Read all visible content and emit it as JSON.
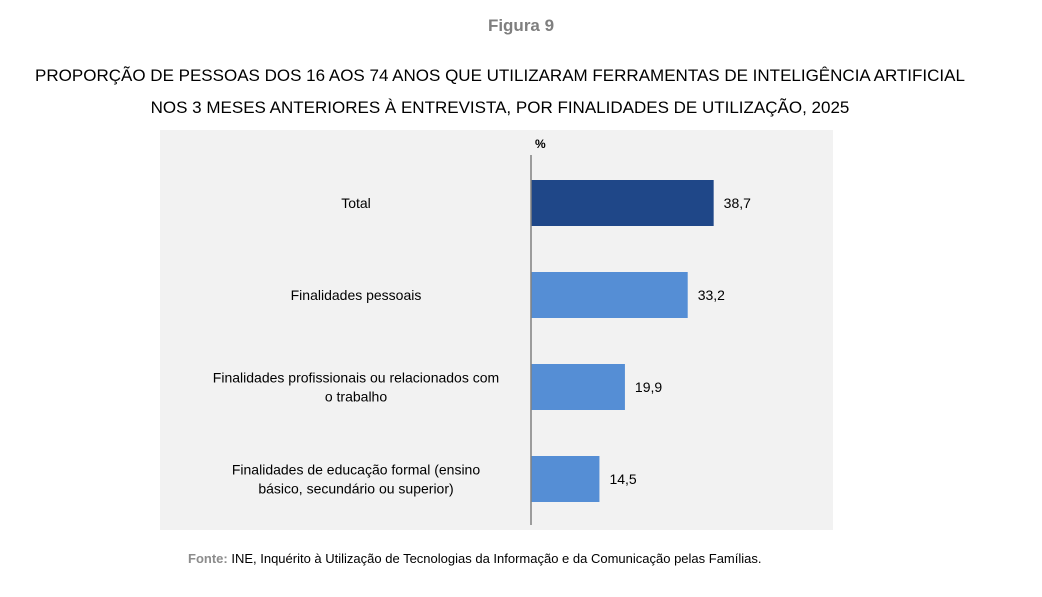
{
  "figure_label": "Figura 9",
  "title": {
    "line1": "PROPORÇÃO DE PESSOAS DOS 16 AOS 74 ANOS QUE UTILIZARAM FERRAMENTAS DE INTELIGÊNCIA ARTIFICIAL",
    "line2": "NOS 3 MESES ANTERIORES À ENTREVISTA, POR FINALIDADES DE UTILIZAÇÃO, 2025"
  },
  "source": {
    "label": "Fonte:",
    "text": " INE, Inquérito à Utilização de Tecnologias da Informação e da Comunicação pelas Famílias."
  },
  "colors": {
    "total_bar": "#1f4788",
    "category_bar": "#558ed5",
    "panel_background": "#f2f2f2",
    "axis": "#808080"
  },
  "chart_data": {
    "type": "bar",
    "orientation": "horizontal",
    "unit_label": "%",
    "xlim": [
      0,
      100
    ],
    "grid": false,
    "legend": "none",
    "categories": [
      [
        "Total"
      ],
      [
        "Finalidades pessoais"
      ],
      [
        "Finalidades profissionais ou relacionados com",
        "o trabalho"
      ],
      [
        "Finalidades de educação formal (ensino",
        "básico, secundário ou superior)"
      ]
    ],
    "values": [
      38.7,
      33.2,
      19.9,
      14.5
    ],
    "value_labels": [
      "38,7",
      "33,2",
      "19,9",
      "14,5"
    ],
    "highlight": [
      true,
      false,
      false,
      false
    ]
  }
}
